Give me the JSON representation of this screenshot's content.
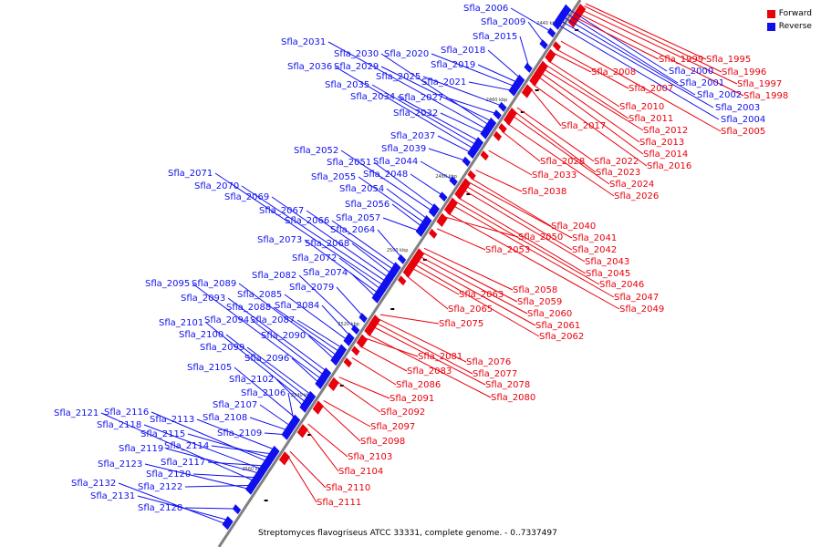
{
  "legend": [
    {
      "label": "Forward",
      "color": "#e8000b"
    },
    {
      "label": "Reverse",
      "color": "#1010ee"
    }
  ],
  "caption": "Streptomyces flavogriseus ATCC 33331, complete genome. - 0..7337497",
  "colors": {
    "forward": "#e8000b",
    "reverse": "#1010ee",
    "backbone": "#808080"
  },
  "ticks": [
    "2440 kbp",
    "2460 kbp",
    "2480 kbp",
    "2500 kbp",
    "2520 kbp",
    "2540 kbp",
    "2560 kbp"
  ],
  "reverse_genes": [
    "Sfla_2006",
    "Sfla_2009",
    "Sfla_2015",
    "Sfla_2018",
    "Sfla_2019",
    "Sfla_2020",
    "Sfla_2021",
    "Sfla_2025",
    "Sfla_2027",
    "Sfla_2029",
    "Sfla_2030",
    "Sfla_2031",
    "Sfla_2032",
    "Sfla_2034",
    "Sfla_2035",
    "Sfla_2036",
    "Sfla_2037",
    "Sfla_2039",
    "Sfla_2044",
    "Sfla_2048",
    "Sfla_2051",
    "Sfla_2052",
    "Sfla_2054",
    "Sfla_2055",
    "Sfla_2056",
    "Sfla_2057",
    "Sfla_2064",
    "Sfla_2066",
    "Sfla_2067",
    "Sfla_2068",
    "Sfla_2069",
    "Sfla_2070",
    "Sfla_2071",
    "Sfla_2072",
    "Sfla_2073",
    "Sfla_2074",
    "Sfla_2079",
    "Sfla_2082",
    "Sfla_2084",
    "Sfla_2085",
    "Sfla_2087",
    "Sfla_2088",
    "Sfla_2089",
    "Sfla_2090",
    "Sfla_2093",
    "Sfla_2094",
    "Sfla_2095",
    "Sfla_2096",
    "Sfla_2099",
    "Sfla_2100",
    "Sfla_2101",
    "Sfla_2102",
    "Sfla_2105",
    "Sfla_2106",
    "Sfla_2107",
    "Sfla_2108",
    "Sfla_2109",
    "Sfla_2113",
    "Sfla_2114",
    "Sfla_2115",
    "Sfla_2116",
    "Sfla_2117",
    "Sfla_2118",
    "Sfla_2119",
    "Sfla_2120",
    "Sfla_2121",
    "Sfla_2122",
    "Sfla_2123",
    "Sfla_2128",
    "Sfla_2131",
    "Sfla_2132",
    "Sfla_2000",
    "Sfla_2001",
    "Sfla_2002",
    "Sfla_2003",
    "Sfla_2004"
  ],
  "forward_genes": [
    "Sfla_1999",
    "Sfla_1995",
    "Sfla_1996",
    "Sfla_1997",
    "Sfla_1998",
    "Sfla_2005",
    "Sfla_2007",
    "Sfla_2008",
    "Sfla_2010",
    "Sfla_2011",
    "Sfla_2012",
    "Sfla_2013",
    "Sfla_2014",
    "Sfla_2016",
    "Sfla_2017",
    "Sfla_2022",
    "Sfla_2023",
    "Sfla_2024",
    "Sfla_2026",
    "Sfla_2028",
    "Sfla_2033",
    "Sfla_2038",
    "Sfla_2040",
    "Sfla_2041",
    "Sfla_2042",
    "Sfla_2043",
    "Sfla_2045",
    "Sfla_2046",
    "Sfla_2047",
    "Sfla_2049",
    "Sfla_2050",
    "Sfla_2053",
    "Sfla_2058",
    "Sfla_2059",
    "Sfla_2060",
    "Sfla_2061",
    "Sfla_2062",
    "Sfla_2063",
    "Sfla_2065",
    "Sfla_2075",
    "Sfla_2076",
    "Sfla_2077",
    "Sfla_2078",
    "Sfla_2080",
    "Sfla_2081",
    "Sfla_2083",
    "Sfla_2086",
    "Sfla_2091",
    "Sfla_2092",
    "Sfla_2097",
    "Sfla_2098",
    "Sfla_2103",
    "Sfla_2104",
    "Sfla_2110",
    "Sfla_2111"
  ]
}
